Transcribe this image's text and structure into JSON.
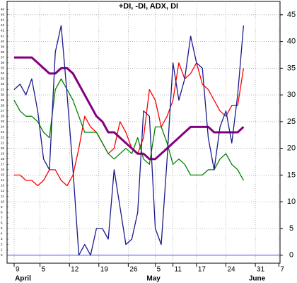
{
  "chart_data": {
    "type": "line",
    "title": "+DI, -DI, ADX, DI",
    "x": [
      0,
      1,
      2,
      3,
      4,
      5,
      6,
      7,
      8,
      9,
      10,
      11,
      12,
      13,
      14,
      15,
      16,
      17,
      18,
      19,
      20,
      21,
      22,
      23,
      24,
      25,
      26,
      27,
      28,
      29,
      30,
      31,
      32,
      33,
      34,
      35,
      36,
      37,
      38,
      39
    ],
    "series": [
      {
        "color": "#ff0000",
        "width": 1.3,
        "values": [
          15,
          15,
          14,
          14,
          13,
          14,
          16,
          16,
          14,
          13,
          15,
          20,
          26,
          24,
          23,
          21,
          19,
          20,
          25,
          23,
          20,
          19,
          22,
          31,
          29,
          24,
          26,
          29,
          36,
          33,
          34,
          36,
          32,
          31,
          29,
          27,
          26,
          28,
          28,
          35
        ]
      },
      {
        "color": "#008000",
        "width": 1.3,
        "values": [
          29,
          27,
          26,
          26,
          25,
          23,
          22,
          31,
          33,
          31,
          29,
          26,
          23,
          23,
          23,
          21,
          19,
          18,
          19,
          20,
          19,
          22,
          18,
          17,
          24,
          24,
          21,
          17,
          18,
          17,
          15,
          15,
          15,
          16,
          16,
          18,
          19,
          17,
          16,
          14
        ]
      },
      {
        "color": "#800080",
        "width": 3,
        "values": [
          37,
          37,
          37,
          37,
          36,
          35,
          34,
          34,
          35,
          35,
          34,
          32,
          30,
          28,
          26,
          25,
          23,
          23,
          22,
          21,
          20,
          19,
          19,
          18,
          18,
          19,
          20,
          21,
          22,
          23,
          24,
          24,
          24,
          24,
          23,
          23,
          23,
          23,
          23,
          24
        ]
      },
      {
        "color": "#1a1a8c",
        "width": 1.3,
        "values": [
          31,
          32,
          30,
          33,
          27,
          18,
          16,
          38,
          43,
          30,
          16,
          0,
          2,
          0,
          5,
          5,
          3,
          16,
          9,
          2,
          3,
          8,
          27,
          26,
          5,
          2,
          18,
          36,
          29,
          33,
          41,
          36,
          35,
          22,
          16,
          24,
          27,
          21,
          30,
          43
        ]
      }
    ],
    "ylim": [
      -1.5,
      47.5
    ],
    "yticks": [
      0,
      5,
      10,
      15,
      20,
      25,
      30,
      35,
      40,
      45
    ],
    "y2lim": [
      -1.5,
      47.5
    ],
    "y2ticks": [
      0,
      1,
      2,
      3,
      4,
      5,
      6,
      7,
      8,
      9,
      10,
      11,
      12,
      13,
      14,
      15,
      16,
      17,
      18,
      19,
      20,
      21,
      22,
      23,
      24,
      25,
      26,
      27,
      28,
      29,
      30,
      31,
      32,
      33,
      34,
      35,
      36,
      37,
      38,
      39,
      40,
      41,
      42,
      43,
      44,
      45,
      46
    ],
    "xlim": [
      -1.2,
      45.2
    ],
    "xticks": [
      {
        "value": 0,
        "label": "9"
      },
      {
        "value": 4.4,
        "label": "5"
      },
      {
        "value": 9.4,
        "label": "12"
      },
      {
        "value": 14.4,
        "label": "19"
      },
      {
        "value": 19.4,
        "label": "26"
      },
      {
        "value": 24,
        "label": "5"
      },
      {
        "value": 27,
        "label": "11"
      },
      {
        "value": 31,
        "label": "17"
      },
      {
        "value": 36,
        "label": "24"
      },
      {
        "value": 41,
        "label": "31"
      },
      {
        "value": 45,
        "label": "7"
      }
    ],
    "month_labels": [
      {
        "value": 1.5,
        "label": "April"
      },
      {
        "value": 23.7,
        "label": "May"
      },
      {
        "value": 41.3,
        "label": "June"
      }
    ],
    "zero_line_color": "#4040ff",
    "grid": true
  }
}
